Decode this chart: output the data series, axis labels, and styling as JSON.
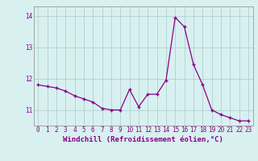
{
  "x": [
    0,
    1,
    2,
    3,
    4,
    5,
    6,
    7,
    8,
    9,
    10,
    11,
    12,
    13,
    14,
    15,
    16,
    17,
    18,
    19,
    20,
    21,
    22,
    23
  ],
  "y": [
    11.8,
    11.75,
    11.7,
    11.6,
    11.45,
    11.35,
    11.25,
    11.05,
    11.0,
    11.0,
    11.65,
    11.1,
    11.5,
    11.5,
    11.95,
    13.95,
    13.65,
    12.45,
    11.8,
    11.0,
    10.85,
    10.75,
    10.65,
    10.65
  ],
  "xlim": [
    -0.5,
    23.5
  ],
  "ylim": [
    10.5,
    14.3
  ],
  "yticks": [
    11,
    12,
    13,
    14
  ],
  "xticks": [
    0,
    1,
    2,
    3,
    4,
    5,
    6,
    7,
    8,
    9,
    10,
    11,
    12,
    13,
    14,
    15,
    16,
    17,
    18,
    19,
    20,
    21,
    22,
    23
  ],
  "xlabel": "Windchill (Refroidissement éolien,°C)",
  "line_color": "#880088",
  "marker": "P",
  "background_color": "#d8f0f0",
  "grid_color": "#aacccc",
  "label_fontsize": 6.5,
  "tick_fontsize": 5.5
}
